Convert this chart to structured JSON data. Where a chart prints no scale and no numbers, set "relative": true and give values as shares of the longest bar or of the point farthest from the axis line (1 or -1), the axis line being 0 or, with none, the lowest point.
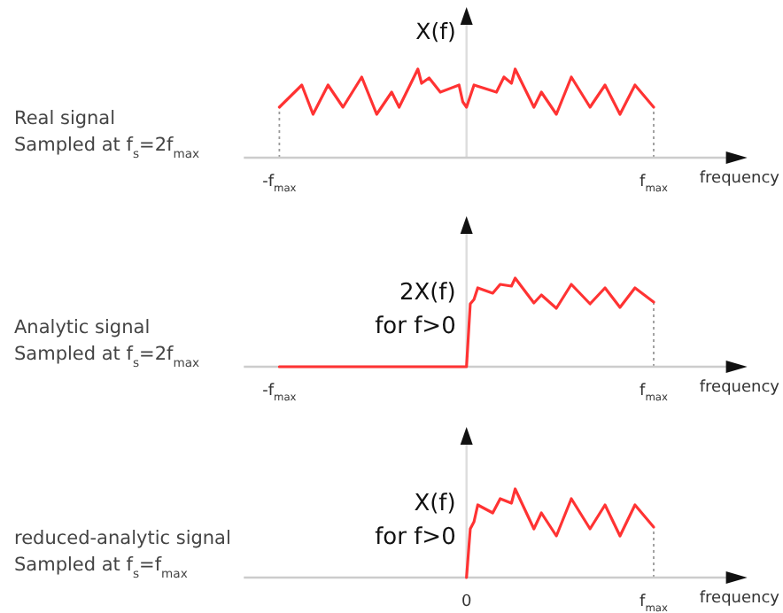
{
  "chart_data": [
    {
      "type": "line",
      "annotations": [
        "Real signal"
      ],
      "subtitle": "Sampled at f$_{s}$=2f$_{max}$",
      "xlabel": "frequency",
      "ylabel": "X(f)",
      "relative": true,
      "categories": [
        "-f$_{max}$",
        null,
        null,
        null,
        null,
        null,
        null,
        null,
        null,
        null,
        null,
        null,
        null,
        null,
        null,
        null,
        null,
        null,
        null,
        null,
        null,
        null,
        null,
        null,
        null,
        null,
        null,
        null,
        null,
        null,
        null,
        null,
        null,
        null,
        null,
        null,
        null,
        null,
        null,
        null,
        null,
        null,
        null,
        null,
        null,
        null,
        null,
        null,
        null,
        null,
        null,
        null,
        null,
        null,
        null,
        null,
        null,
        null,
        null,
        null,
        null,
        null,
        null,
        null,
        null,
        null,
        null,
        null,
        null,
        null,
        null,
        null,
        null,
        null,
        null,
        null,
        null,
        null,
        null,
        null,
        null,
        null,
        null,
        null,
        null,
        null,
        null,
        null,
        null,
        null,
        null,
        null,
        null,
        null,
        null,
        null,
        null,
        null,
        null,
        null,
        "f$_{max}$"
      ],
      "ref_lines": [
        {
          "axis": "x",
          "value": "-f$_{max}$",
          "color": "#999999",
          "line_style": "dotted"
        },
        {
          "axis": "x",
          "value": "f$_{max}$",
          "color": "#999999",
          "line_style": "dotted"
        }
      ],
      "series": [
        {
          "color": "#ff3333",
          "values": [
            0.57,
            null,
            null,
            null,
            null,
            null,
            0.82,
            null,
            null,
            0.49,
            null,
            null,
            null,
            0.82,
            null,
            null,
            null,
            0.57,
            null,
            null,
            null,
            null,
            0.91,
            null,
            null,
            null,
            0.49,
            null,
            null,
            null,
            0.74,
            null,
            0.57,
            null,
            null,
            null,
            null,
            1,
            0.84,
            null,
            0.9,
            null,
            null,
            0.74,
            null,
            null,
            null,
            null,
            0.82,
            0.63,
            0.57,
            null,
            0.82,
            null,
            null,
            null,
            null,
            null,
            0.74,
            null,
            0.91,
            null,
            0.84,
            1,
            null,
            null,
            null,
            null,
            0.57,
            null,
            0.74,
            null,
            null,
            null,
            0.49,
            null,
            null,
            null,
            0.91,
            null,
            null,
            null,
            null,
            0.57,
            null,
            null,
            null,
            0.82,
            null,
            null,
            null,
            0.49,
            null,
            null,
            null,
            0.82,
            null,
            null,
            null,
            null,
            0.57
          ]
        }
      ]
    },
    {
      "type": "line",
      "subtitle": "Sampled at f$_{s}$=2f$_{max}$",
      "xlabel": "frequency",
      "relative": true,
      "annotations": [
        "Analytic signal",
        "2X(f)",
        "for f>0"
      ],
      "categories": [
        "-f$_{max}$",
        null,
        null,
        null,
        null,
        null,
        null,
        null,
        null,
        null,
        null,
        null,
        null,
        null,
        null,
        null,
        null,
        null,
        null,
        null,
        null,
        null,
        null,
        null,
        null,
        null,
        null,
        null,
        null,
        null,
        null,
        null,
        null,
        null,
        null,
        null,
        null,
        null,
        null,
        null,
        null,
        null,
        null,
        null,
        null,
        null,
        null,
        null,
        null,
        null,
        null,
        null,
        null,
        null,
        null,
        null,
        null,
        null,
        null,
        null,
        null,
        null,
        null,
        null,
        null,
        null,
        null,
        null,
        null,
        null,
        null,
        null,
        null,
        null,
        null,
        null,
        null,
        null,
        null,
        null,
        null,
        null,
        null,
        null,
        null,
        null,
        null,
        null,
        null,
        null,
        null,
        null,
        null,
        null,
        null,
        null,
        null,
        null,
        null,
        null,
        "f$_{max}$"
      ],
      "ref_lines": [
        {
          "axis": "x",
          "value": "f$_{max}$",
          "color": "#999999",
          "line_style": "dotted"
        }
      ],
      "series": [
        {
          "color": "#ff3333",
          "values": [
            0,
            null,
            null,
            null,
            null,
            null,
            null,
            null,
            null,
            null,
            null,
            null,
            null,
            null,
            null,
            null,
            null,
            null,
            null,
            null,
            null,
            null,
            null,
            null,
            null,
            null,
            null,
            null,
            null,
            null,
            null,
            null,
            null,
            null,
            null,
            null,
            null,
            null,
            null,
            null,
            null,
            null,
            null,
            null,
            null,
            null,
            null,
            null,
            null,
            null,
            0,
            0.71,
            0.76,
            0.89,
            null,
            null,
            null,
            0.83,
            null,
            0.93,
            null,
            null,
            0.91,
            1,
            null,
            null,
            null,
            null,
            0.72,
            null,
            0.81,
            null,
            null,
            null,
            0.66,
            null,
            null,
            null,
            0.93,
            null,
            null,
            null,
            null,
            0.71,
            null,
            null,
            null,
            0.89,
            null,
            null,
            null,
            0.67,
            null,
            null,
            null,
            0.89,
            null,
            null,
            null,
            null,
            0.73
          ]
        }
      ]
    },
    {
      "type": "line",
      "subtitle": "Sampled at f$_{s}$=f$_{max}$",
      "xlabel": "frequency",
      "relative": true,
      "annotations": [
        "reduced-analytic signal",
        "X(f)",
        "for f>0"
      ],
      "categories": [
        null,
        null,
        null,
        null,
        null,
        null,
        null,
        null,
        null,
        null,
        null,
        null,
        null,
        null,
        null,
        null,
        null,
        null,
        null,
        null,
        null,
        null,
        null,
        null,
        null,
        null,
        null,
        null,
        null,
        null,
        null,
        null,
        null,
        null,
        null,
        null,
        null,
        null,
        null,
        null,
        null,
        null,
        null,
        null,
        null,
        null,
        null,
        null,
        null,
        null,
        "0",
        null,
        null,
        null,
        null,
        null,
        null,
        null,
        null,
        null,
        null,
        null,
        null,
        null,
        null,
        null,
        null,
        null,
        null,
        null,
        null,
        null,
        null,
        null,
        null,
        null,
        null,
        null,
        null,
        null,
        null,
        null,
        null,
        null,
        null,
        null,
        null,
        null,
        null,
        null,
        null,
        null,
        null,
        null,
        null,
        null,
        null,
        null,
        null,
        null,
        "f$_{max}$"
      ],
      "ref_lines": [
        {
          "axis": "x",
          "value": "f$_{max}$",
          "color": "#999999",
          "line_style": "dotted"
        }
      ],
      "series": [
        {
          "color": "#ff3333",
          "values": [
            null,
            null,
            null,
            null,
            null,
            null,
            null,
            null,
            null,
            null,
            null,
            null,
            null,
            null,
            null,
            null,
            null,
            null,
            null,
            null,
            null,
            null,
            null,
            null,
            null,
            null,
            null,
            null,
            null,
            null,
            null,
            null,
            null,
            null,
            null,
            null,
            null,
            null,
            null,
            null,
            null,
            null,
            null,
            null,
            null,
            null,
            null,
            null,
            null,
            null,
            0,
            0.55,
            0.63,
            0.82,
            null,
            null,
            null,
            0.73,
            null,
            0.89,
            null,
            null,
            0.84,
            1,
            null,
            null,
            null,
            null,
            0.55,
            null,
            0.73,
            null,
            null,
            null,
            0.47,
            null,
            null,
            null,
            0.89,
            null,
            null,
            null,
            null,
            0.55,
            null,
            null,
            null,
            0.82,
            null,
            null,
            null,
            0.47,
            null,
            null,
            null,
            0.82,
            null,
            null,
            null,
            null,
            0.57
          ]
        }
      ]
    }
  ]
}
